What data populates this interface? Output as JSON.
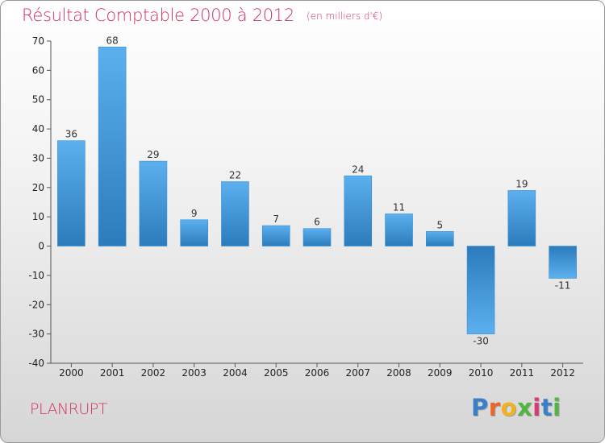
{
  "title": {
    "main": "Résultat Comptable 2000 à 2012",
    "subtitle": "(en milliers d'€)"
  },
  "commune": "PLANRUPT",
  "logo": {
    "letters": [
      "P",
      "r",
      "o",
      "x",
      "i",
      "t",
      "i"
    ],
    "colors": [
      "#3a7fc8",
      "#e8682c",
      "#f2b21f",
      "#52b443",
      "#d53a72",
      "#3a7fc8",
      "#52b443"
    ]
  },
  "colors": {
    "bar_top": "#5cb0ee",
    "bar_bottom": "#2b7bbd",
    "accent": "#d3335f"
  },
  "chart_data": {
    "type": "bar",
    "title": "Résultat Comptable 2000 à 2012 (en milliers d'€)",
    "xlabel": "",
    "ylabel": "",
    "categories": [
      "2000",
      "2001",
      "2002",
      "2003",
      "2004",
      "2005",
      "2006",
      "2007",
      "2008",
      "2009",
      "2010",
      "2011",
      "2012"
    ],
    "values": [
      36,
      68,
      29,
      9,
      22,
      7,
      6,
      24,
      11,
      5,
      -30,
      19,
      -11
    ],
    "value_labels": [
      "36",
      "68",
      "29",
      "9",
      "22",
      "7",
      "6",
      "24",
      "11",
      "5",
      "-30",
      "19",
      "-11"
    ],
    "ylim": [
      -40,
      70
    ],
    "yticks": [
      70,
      60,
      50,
      40,
      30,
      20,
      10,
      0,
      -10,
      -20,
      -30,
      -40
    ],
    "grid": false
  }
}
